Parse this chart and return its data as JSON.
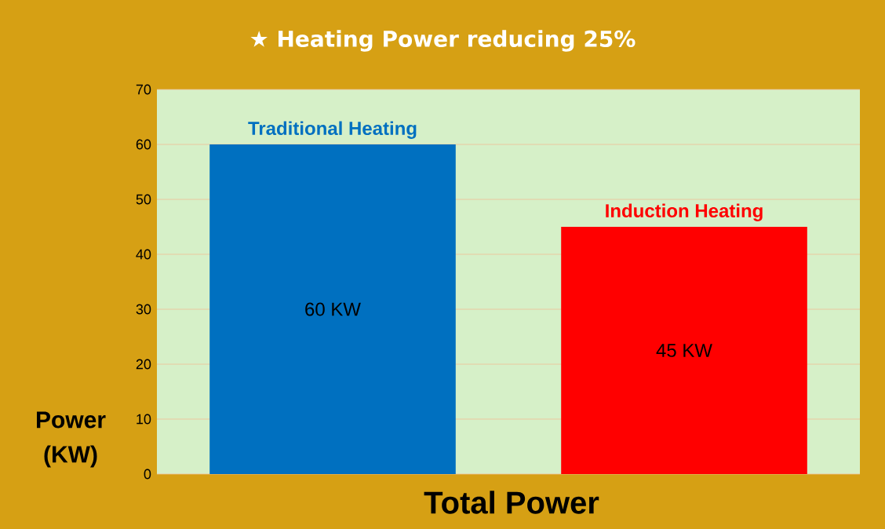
{
  "chart_data": {
    "type": "bar",
    "title": "★  Heating Power reducing 25%",
    "xlabel": "Total Power",
    "ylabel": "Power (KW)",
    "categories": [
      "Traditional Heating",
      "Induction Heating"
    ],
    "values": [
      60,
      45
    ],
    "colors": [
      "#0070c0",
      "#ff0000"
    ],
    "value_labels": [
      "60 KW",
      "45 KW"
    ],
    "ylim": [
      0,
      70
    ],
    "yticks": [
      0,
      10,
      20,
      30,
      40,
      50,
      60,
      70
    ],
    "grid": "y"
  }
}
